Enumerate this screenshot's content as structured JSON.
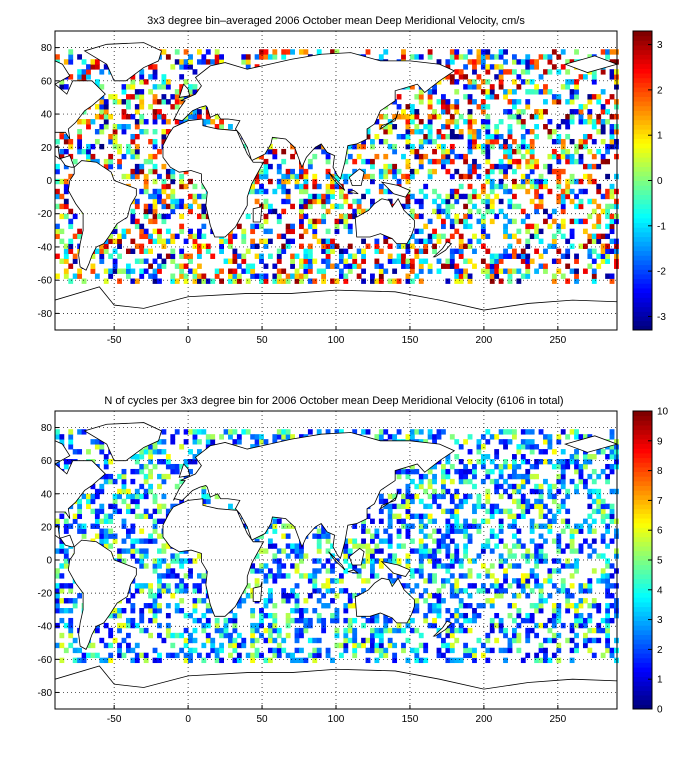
{
  "chart_data": [
    {
      "type": "heatmap",
      "title": "3x3 degree bin–averaged 2006 October mean Deep Meridional Velocity, cm/s",
      "xlabel": "",
      "ylabel": "",
      "x_ticks": [
        -50,
        0,
        50,
        100,
        150,
        200,
        250
      ],
      "y_ticks": [
        80,
        60,
        40,
        20,
        0,
        -20,
        -40,
        -60,
        -80
      ],
      "xlim": [
        -90,
        290
      ],
      "ylim": [
        -90,
        90
      ],
      "grid": true,
      "colorbar": {
        "ticks": [
          3,
          2,
          1,
          0,
          -1,
          -2,
          -3
        ],
        "range": [
          -3.3,
          3.3
        ],
        "colormap": "jet"
      },
      "bin_size_deg": 3,
      "lat_range_of_bins": [
        -62,
        77
      ]
    },
    {
      "type": "heatmap",
      "title": "N of cycles per 3x3 degree bin for 2006 October mean Deep Meridional Velocity (6106 in total)",
      "xlabel": "",
      "ylabel": "",
      "x_ticks": [
        -50,
        0,
        50,
        100,
        150,
        200,
        250
      ],
      "y_ticks": [
        80,
        60,
        40,
        20,
        0,
        -20,
        -40,
        -60,
        -80
      ],
      "xlim": [
        -90,
        290
      ],
      "ylim": [
        -90,
        90
      ],
      "grid": true,
      "colorbar": {
        "ticks": [
          10,
          9,
          8,
          7,
          6,
          5,
          4,
          3,
          2,
          1,
          0
        ],
        "range": [
          0,
          10
        ],
        "colormap": "jet"
      },
      "bin_size_deg": 3,
      "lat_range_of_bins": [
        -62,
        77
      ]
    }
  ]
}
